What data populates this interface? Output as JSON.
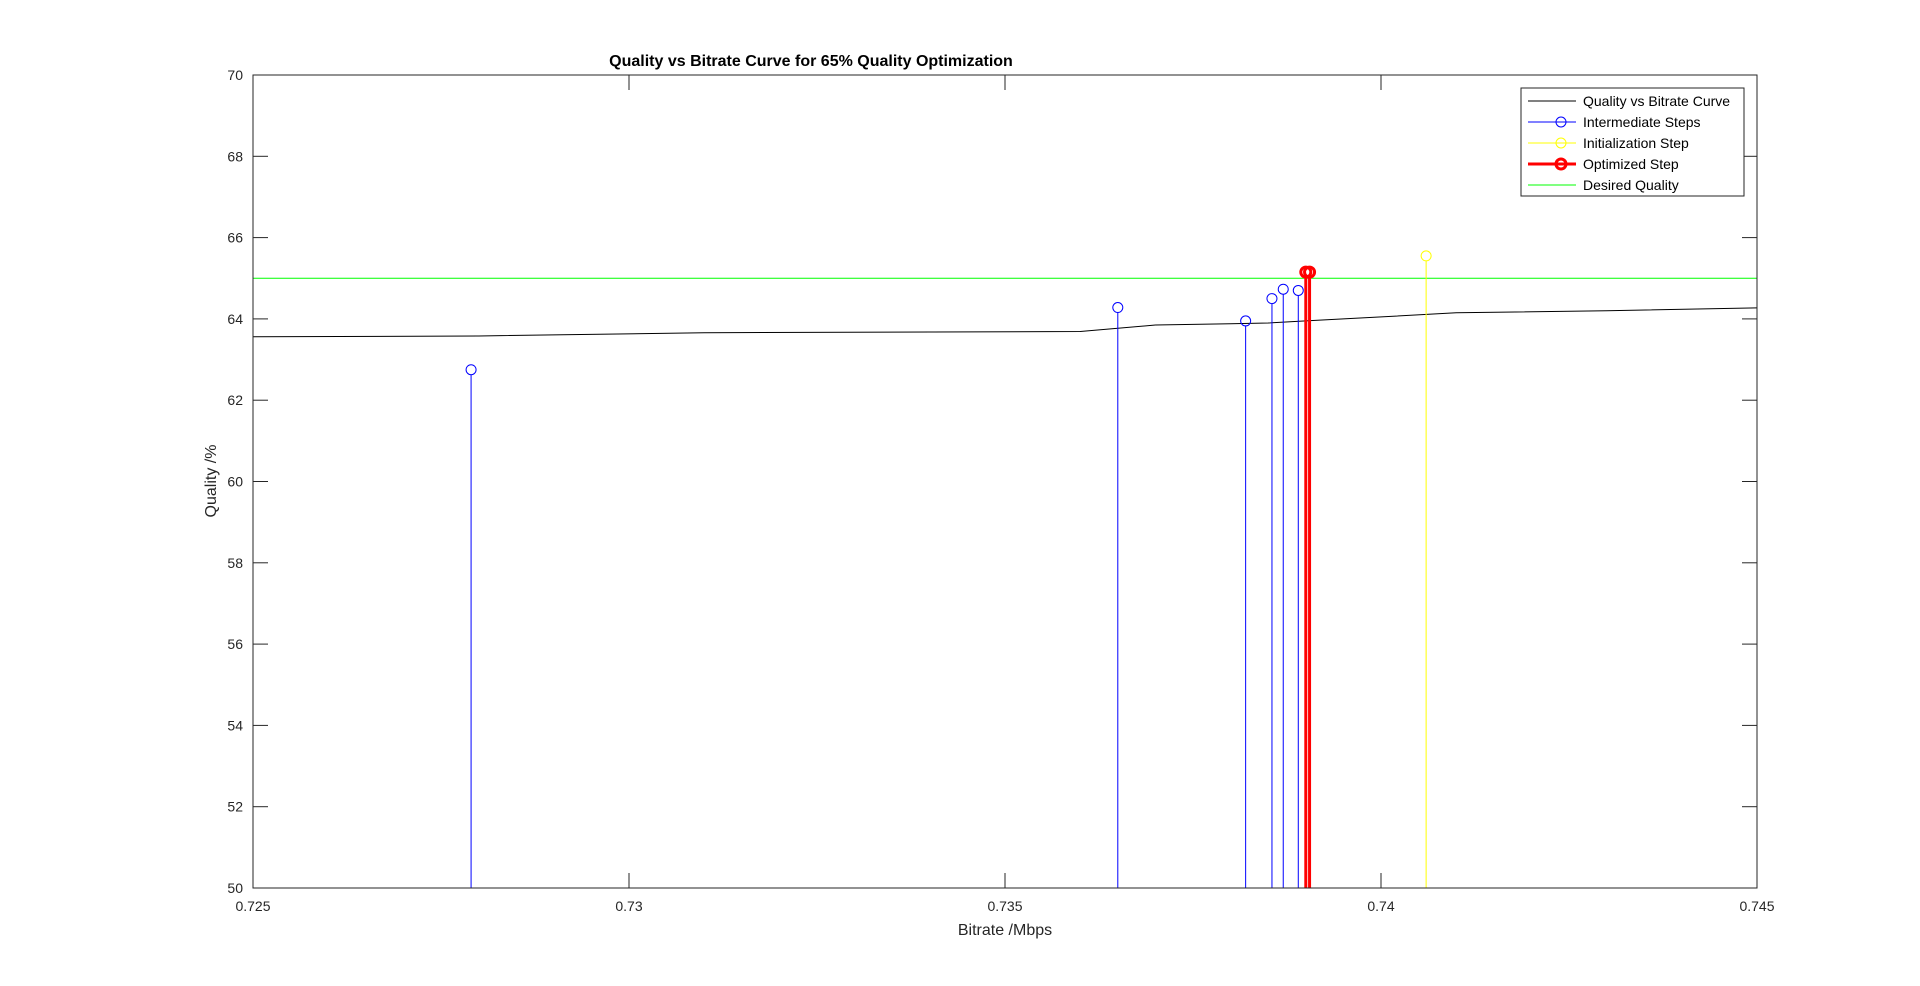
{
  "chart_data": {
    "type": "line",
    "title": "Quality vs Bitrate Curve for 65% Quality Optimization",
    "xlabel": "Bitrate /Mbps",
    "ylabel": "Quality /%",
    "xlim": [
      0.725,
      0.745
    ],
    "ylim": [
      50,
      70
    ],
    "xticks": [
      0.725,
      0.73,
      0.735,
      0.74,
      0.745
    ],
    "xtick_labels": [
      "0.725",
      "0.73",
      "0.735",
      "0.74",
      "0.745"
    ],
    "yticks": [
      50,
      52,
      54,
      56,
      58,
      60,
      62,
      64,
      66,
      68,
      70
    ],
    "ytick_labels": [
      "50",
      "52",
      "54",
      "56",
      "58",
      "60",
      "62",
      "64",
      "66",
      "68",
      "70"
    ],
    "grid": false,
    "legend_position": "top-right",
    "curve": {
      "name": "Quality vs Bitrate Curve",
      "color": "#000000",
      "x": [
        0.725,
        0.728,
        0.731,
        0.736,
        0.737,
        0.738,
        0.7385,
        0.739,
        0.7395,
        0.741,
        0.743,
        0.745
      ],
      "y": [
        63.56,
        63.58,
        63.66,
        63.69,
        63.85,
        63.88,
        63.9,
        63.95,
        64.0,
        64.15,
        64.2,
        64.27
      ]
    },
    "intermediate_steps": {
      "name": "Intermediate Steps",
      "color": "#0000ff",
      "x": [
        0.7279,
        0.7365,
        0.7382,
        0.73855,
        0.7387,
        0.7389
      ],
      "y": [
        62.75,
        64.28,
        63.95,
        64.5,
        64.73,
        64.7
      ]
    },
    "initialization_step": {
      "name": "Initialization Step",
      "color": "#ffff00",
      "x": [
        0.7406
      ],
      "y": [
        65.55
      ]
    },
    "optimized_step": {
      "name": "Optimized Step",
      "color": "#ff0000",
      "x": [
        0.739,
        0.73905
      ],
      "y": [
        65.15,
        65.15
      ]
    },
    "desired_quality": {
      "name": "Desired Quality",
      "color": "#00ff00",
      "y": 65
    },
    "legend": [
      "Quality vs Bitrate Curve",
      "Intermediate Steps",
      "Initialization Step",
      "Optimized Step",
      "Desired Quality"
    ]
  }
}
